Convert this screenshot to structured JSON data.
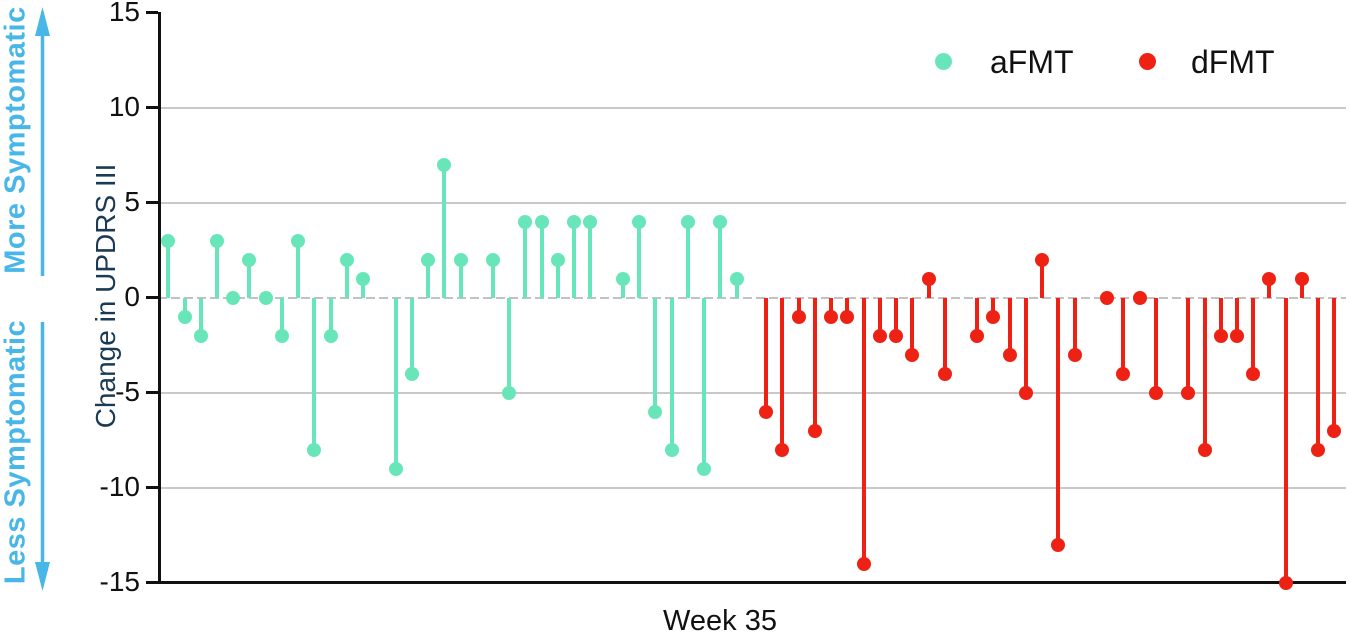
{
  "side_labels": {
    "more": "More Symptomatic",
    "less": "Less Symptomatic"
  },
  "y_axis": {
    "title": "Change in UPDRS III",
    "tick_labels": [
      "15",
      "10",
      "5",
      "0",
      "-5",
      "-10",
      "-15"
    ],
    "tick_values": [
      15,
      10,
      5,
      0,
      -5,
      -10,
      -15
    ]
  },
  "x_axis": {
    "label": "Week 35"
  },
  "legend": {
    "items": [
      {
        "label": "aFMT",
        "color": "#69E6B9"
      },
      {
        "label": "dFMT",
        "color": "#EE2214"
      }
    ]
  },
  "colors": {
    "afmt": "#69E6B9",
    "dfmt": "#EE2214",
    "annotation_blue": "#49B6E8",
    "axis_title_navy": "#1B3A54",
    "gridline": "#C9C9C9",
    "zero_line": "#C2C2C2",
    "axis_black": "#111111"
  },
  "chart_data": {
    "type": "stem",
    "title": "",
    "xlabel": "Week 35",
    "ylabel": "Change in UPDRS III",
    "ylim": [
      -15,
      15
    ],
    "gridlines_at": [
      10,
      5,
      -5,
      -10
    ],
    "zero_line": "dashed",
    "baseline_axis_at": -15,
    "legend_position": "top-right",
    "note": "null = missing subject slot (gap in stem sequence)",
    "series": [
      {
        "name": "aFMT",
        "color": "#69E6B9",
        "values": [
          3,
          -1,
          -2,
          3,
          0,
          2,
          0,
          -2,
          3,
          -8,
          -2,
          2,
          1,
          null,
          -9,
          -4,
          2,
          7,
          2,
          null,
          2,
          -5,
          4,
          4,
          2,
          4,
          4,
          null,
          1,
          4,
          -6,
          -8,
          4,
          -9,
          4,
          1
        ]
      },
      {
        "name": "dFMT",
        "color": "#EE2214",
        "values": [
          -6,
          -8,
          -1,
          -7,
          -1,
          -1,
          -14,
          -2,
          -2,
          -3,
          1,
          -4,
          null,
          -2,
          -1,
          -3,
          -5,
          2,
          -13,
          -3,
          null,
          0,
          -4,
          0,
          -5,
          null,
          -5,
          -8,
          -2,
          -2,
          -4,
          1,
          -15,
          1,
          -8,
          -7
        ]
      }
    ]
  }
}
